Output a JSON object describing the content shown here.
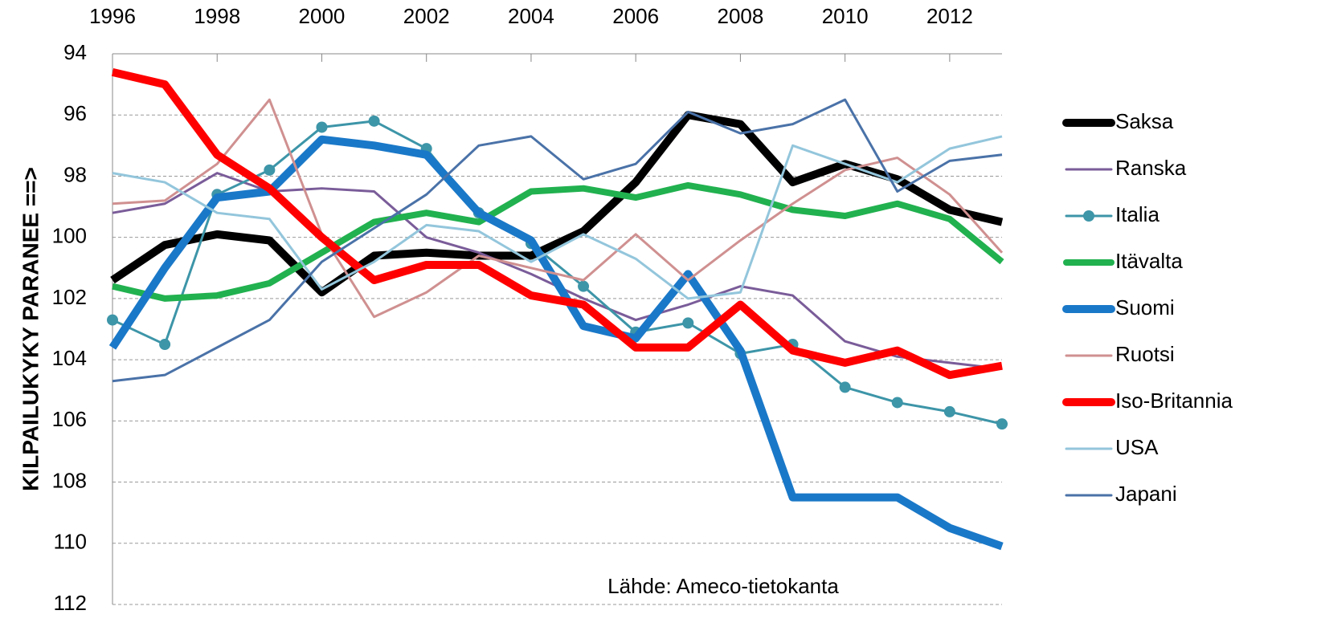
{
  "chart_data": {
    "type": "line",
    "y_label": "KILPAILUKYKY PARANEE ==>",
    "annotation": "Lähde: Ameco-tietokanta",
    "x": [
      1996,
      1997,
      1998,
      1999,
      2000,
      2001,
      2002,
      2003,
      2004,
      2005,
      2006,
      2007,
      2008,
      2009,
      2010,
      2011,
      2012,
      2013
    ],
    "xlim": [
      1996,
      2013
    ],
    "xticks": [
      1996,
      1998,
      2000,
      2002,
      2004,
      2006,
      2008,
      2010,
      2012
    ],
    "xaxis_position": "top",
    "ylim": [
      94,
      112
    ],
    "yticks": [
      94,
      96,
      98,
      100,
      102,
      104,
      106,
      108,
      110,
      112
    ],
    "y_inverted": true,
    "grid": true,
    "legend": "right",
    "series": [
      {
        "name": "Saksa",
        "color": "#000000",
        "width": 10,
        "values": [
          101.4,
          100.25,
          99.9,
          100.1,
          101.8,
          100.6,
          100.5,
          100.6,
          100.6,
          99.8,
          98.2,
          96.0,
          96.3,
          98.2,
          97.6,
          98.1,
          99.1,
          99.5
        ]
      },
      {
        "name": "Ranska",
        "color": "#7a5c99",
        "width": 3,
        "values": [
          99.2,
          98.9,
          97.9,
          98.5,
          98.4,
          98.5,
          100.0,
          100.5,
          101.2,
          102.0,
          102.7,
          102.2,
          101.6,
          101.9,
          103.4,
          103.9,
          104.1,
          104.3
        ]
      },
      {
        "name": "Italia",
        "color": "#3d95a8",
        "width": 3,
        "marker": true,
        "values": [
          102.7,
          103.5,
          98.6,
          97.8,
          96.4,
          96.2,
          97.1,
          99.2,
          100.2,
          101.6,
          103.1,
          102.8,
          103.8,
          103.5,
          104.9,
          105.4,
          105.7,
          106.1
        ]
      },
      {
        "name": "Itävalta",
        "color": "#21b14f",
        "width": 8,
        "values": [
          101.6,
          102.0,
          101.9,
          101.5,
          100.5,
          99.5,
          99.2,
          99.5,
          98.5,
          98.4,
          98.7,
          98.3,
          98.6,
          99.1,
          99.3,
          98.9,
          99.4,
          100.8
        ]
      },
      {
        "name": "Suomi",
        "color": "#1a78c8",
        "width": 10,
        "values": [
          103.6,
          101.0,
          98.7,
          98.5,
          96.8,
          97.0,
          97.3,
          99.2,
          100.1,
          102.9,
          103.3,
          101.2,
          103.7,
          108.5,
          108.5,
          108.5,
          109.5,
          110.1
        ]
      },
      {
        "name": "Ruotsi",
        "color": "#d09090",
        "width": 3,
        "values": [
          98.9,
          98.8,
          97.6,
          95.5,
          99.9,
          102.6,
          101.8,
          100.6,
          101.0,
          101.4,
          99.9,
          101.4,
          100.1,
          98.9,
          97.8,
          97.4,
          98.6,
          100.5
        ]
      },
      {
        "name": "Iso-Britannia",
        "color": "#ff0000",
        "width": 10,
        "values": [
          94.6,
          95.0,
          97.3,
          98.4,
          100.0,
          101.4,
          100.9,
          100.9,
          101.9,
          102.2,
          103.6,
          103.6,
          102.2,
          103.7,
          104.1,
          103.7,
          104.5,
          104.2
        ]
      },
      {
        "name": "USA",
        "color": "#93c6dc",
        "width": 3,
        "values": [
          97.9,
          98.2,
          99.2,
          99.4,
          101.7,
          100.8,
          99.6,
          99.8,
          100.8,
          99.9,
          100.7,
          102.0,
          101.8,
          97.0,
          97.6,
          98.2,
          97.1,
          96.7
        ]
      },
      {
        "name": "Japani",
        "color": "#4a72a8",
        "width": 3,
        "values": [
          104.7,
          104.5,
          103.6,
          102.7,
          100.8,
          99.7,
          98.6,
          97.0,
          96.7,
          98.1,
          97.6,
          95.9,
          96.6,
          96.3,
          95.5,
          98.5,
          97.5,
          97.3
        ]
      }
    ]
  }
}
